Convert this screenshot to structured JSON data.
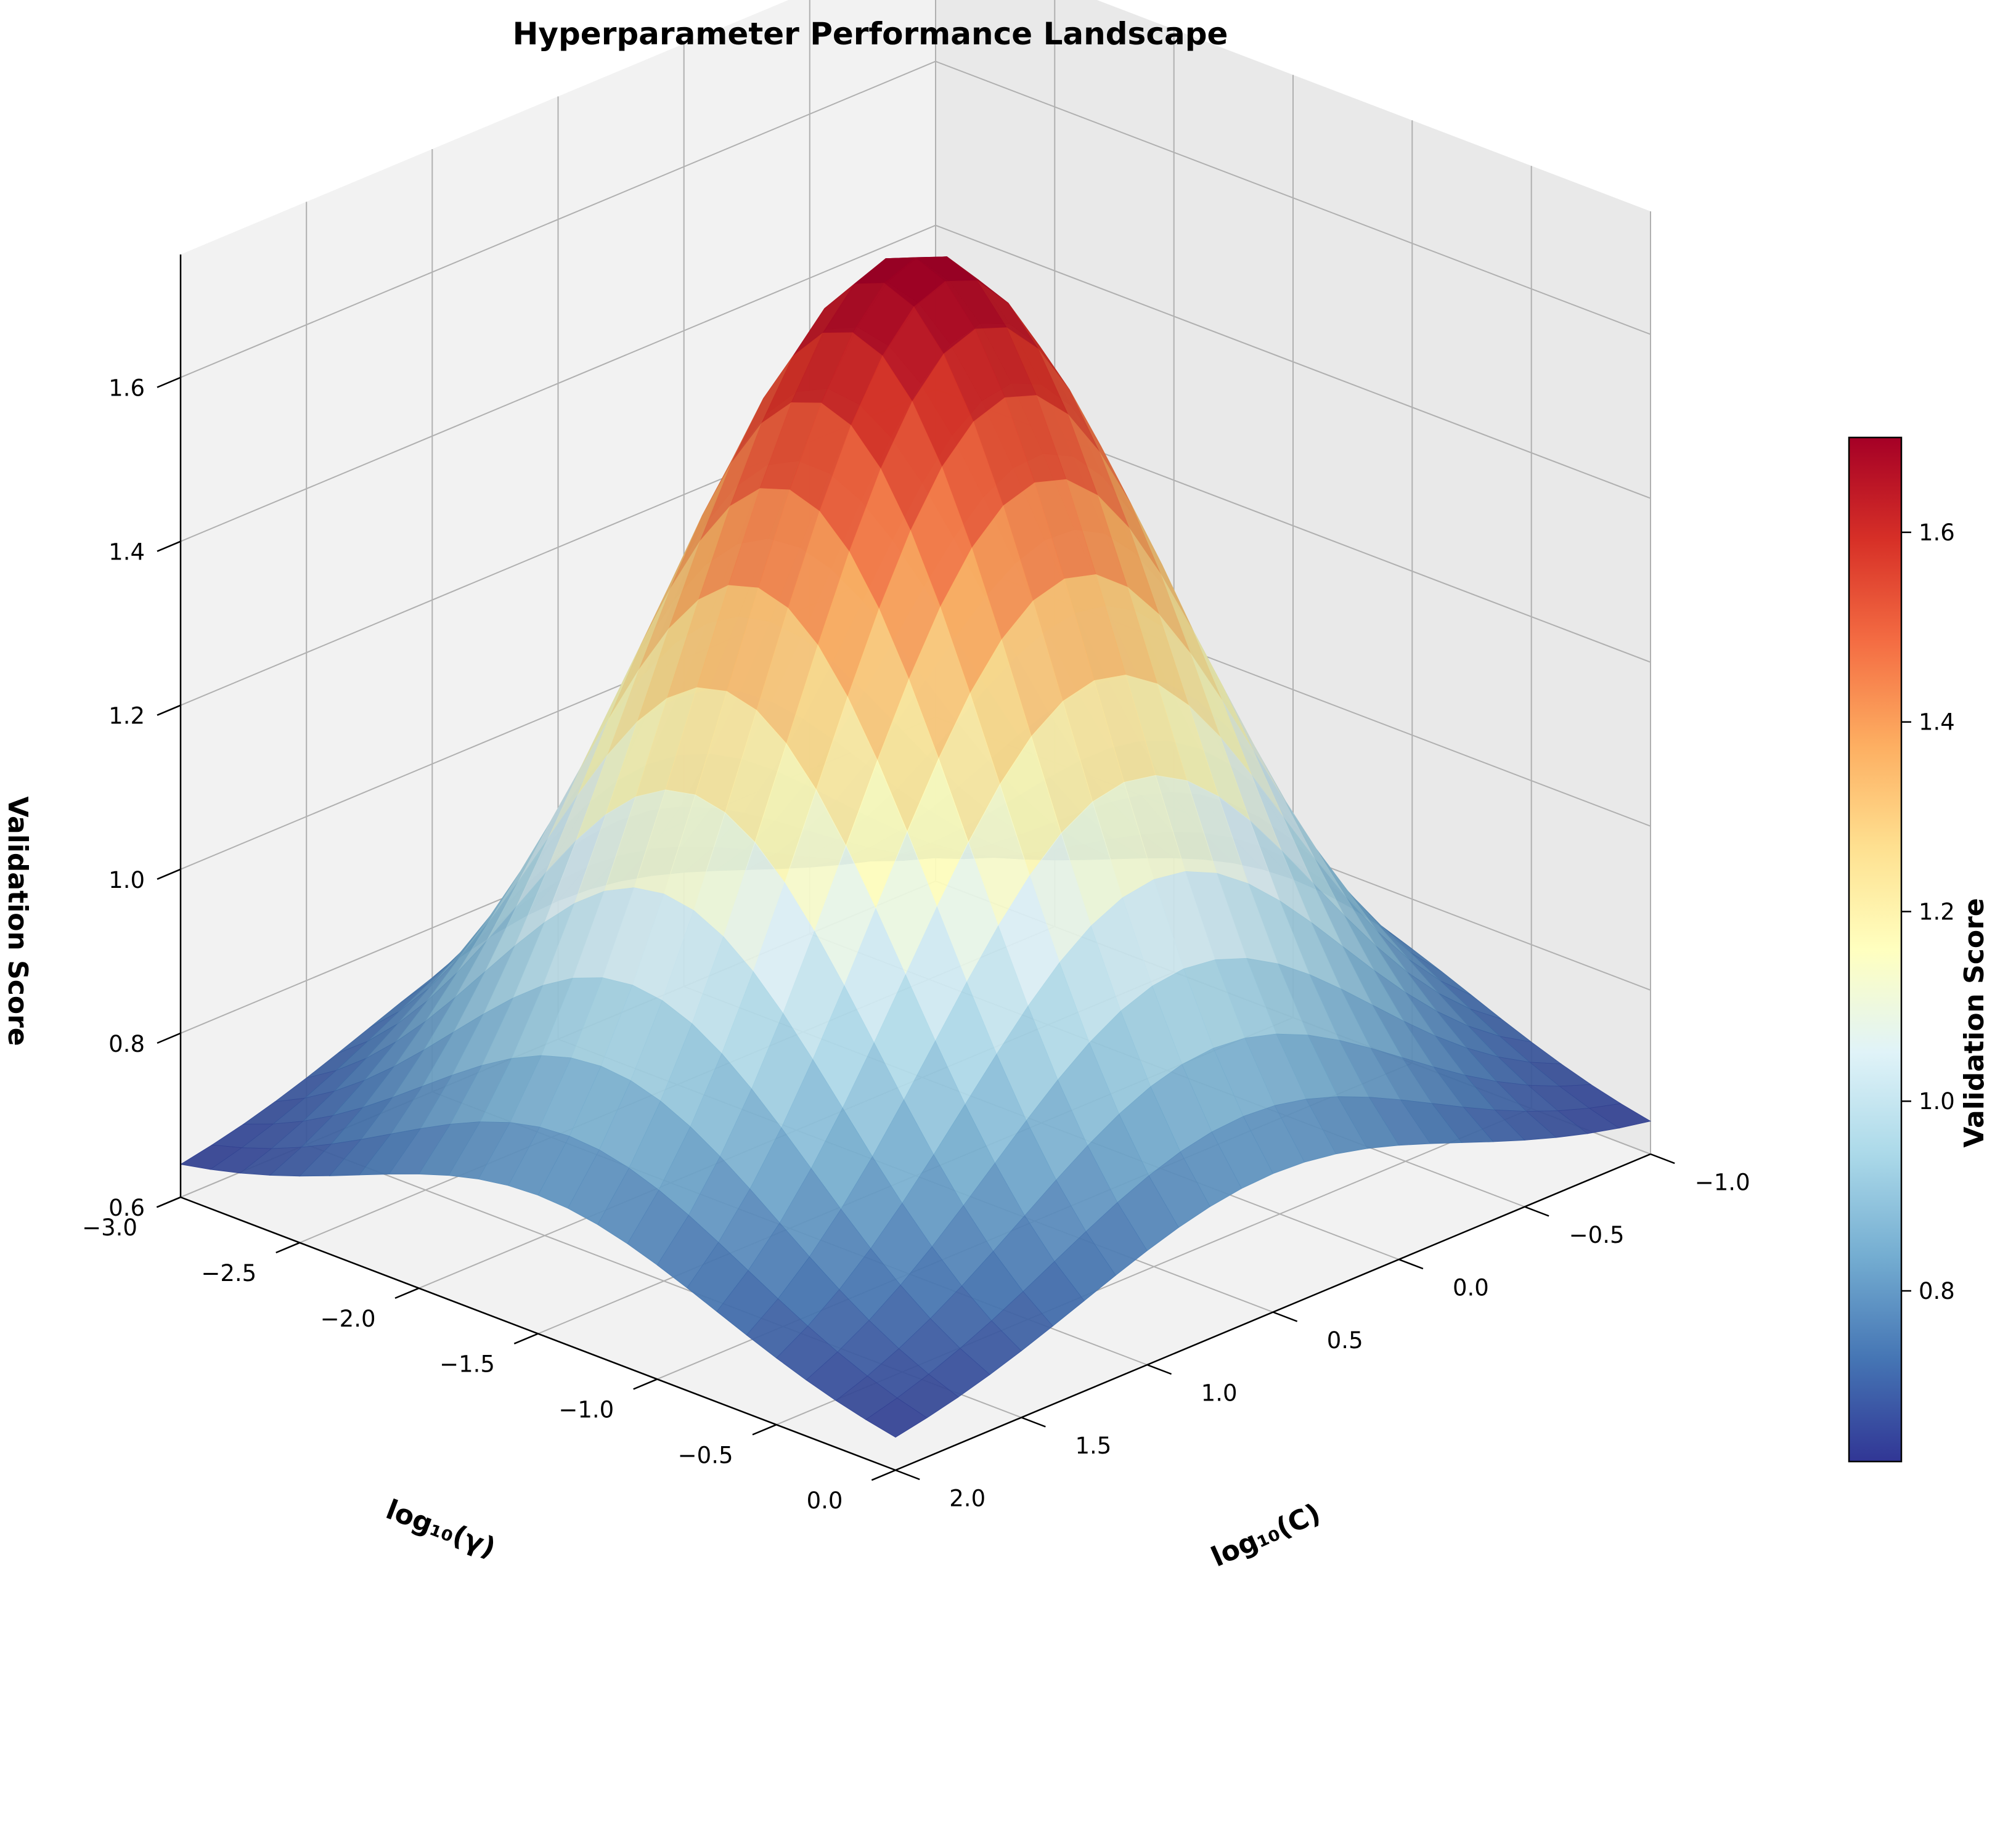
{
  "chart_data": {
    "type": "surface",
    "title": "Hyperparameter Performance Landscape",
    "xlabel": "log₁₀(C)",
    "ylabel": "log₁₀(γ)",
    "zlabel": "Validation Score",
    "colorbar_label": "Validation Score",
    "colormap": "RdYlBu_r",
    "colormap_stops": [
      "#313695",
      "#4575b4",
      "#74add1",
      "#abd9e9",
      "#e0f3f8",
      "#ffffbf",
      "#fee090",
      "#fdae61",
      "#f46d43",
      "#d73027",
      "#a50026"
    ],
    "x_range": [
      -1.0,
      2.0
    ],
    "y_range": [
      -3.0,
      0.0
    ],
    "z_range": [
      0.6,
      1.75
    ],
    "color_range": [
      0.62,
      1.7
    ],
    "grid_points": 25,
    "peak": {
      "x": 0.5,
      "y": -1.5,
      "z": 1.72
    },
    "edge_score": 0.62,
    "surface_function": "0.62 + 1.10 * exp(-((x-0.5)^2 + (y+1.5)^2) / 1.125)",
    "x_ticks": [
      "−1.0",
      "−0.5",
      "0.0",
      "0.5",
      "1.0",
      "1.5",
      "2.0"
    ],
    "y_ticks": [
      "−3.0",
      "−2.5",
      "−2.0",
      "−1.5",
      "−1.0",
      "−0.5",
      "0.0"
    ],
    "z_ticks": [
      "0.6",
      "0.8",
      "1.0",
      "1.2",
      "1.4",
      "1.6"
    ],
    "colorbar_ticks": [
      "0.8",
      "1.0",
      "1.2",
      "1.4",
      "1.6"
    ],
    "grid": true
  }
}
